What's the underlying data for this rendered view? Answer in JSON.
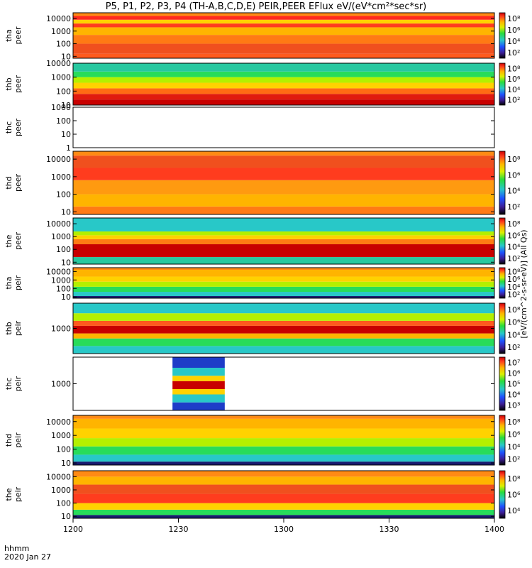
{
  "title": "P5, P1, P2, P3, P4 (TH-A,B,C,D,E) PEIR,PEER EFlux eV/(eV*cm²*sec*sr)",
  "footer": {
    "line1": "hhmm",
    "line2": "2020 Jan 27"
  },
  "x_ticks": [
    "1200",
    "1230",
    "1300",
    "1330",
    "1400"
  ],
  "colorbar_unit_peer": "[eV/(cm^2-s-sr-eV)] (All Qs)",
  "colorbar_unit_peir": "[eV/(cm^2-s-sr-eV)] (All Qs)",
  "chart_data": {
    "type": "heatmap",
    "x_range": [
      "12:00",
      "14:00"
    ],
    "x_ticks": [
      "1200",
      "1230",
      "1300",
      "1330",
      "1400"
    ],
    "scale": "log",
    "panels": [
      {
        "id": "tha-peer",
        "label1": "tha",
        "label2": "peer",
        "y_ticks": [
          "10000",
          "1000",
          "100",
          "10"
        ],
        "cbar_ticks": [
          "10⁸",
          "10⁶",
          "10⁴",
          "10²"
        ],
        "log_ylim": [
          0.85,
          4.45
        ],
        "bands": [
          [
            0.85,
            1.2,
            "#ff5a1e"
          ],
          [
            1.2,
            2.0,
            "#f0501e"
          ],
          [
            2.0,
            2.7,
            "#ff7a14"
          ],
          [
            2.7,
            3.3,
            "#ffb400"
          ],
          [
            3.3,
            3.6,
            "#ff3c1e"
          ],
          [
            3.6,
            3.9,
            "#ffd200"
          ],
          [
            3.9,
            4.2,
            "#ff2a1e"
          ],
          [
            4.2,
            4.45,
            "#ff8a14"
          ]
        ]
      },
      {
        "id": "thb-peer",
        "label1": "thb",
        "label2": "peer",
        "y_ticks": [
          "10000",
          "1000",
          "100",
          "10"
        ],
        "cbar_ticks": [
          "10⁸",
          "10⁶",
          "10⁴",
          "10²"
        ],
        "log_ylim": [
          1.0,
          4.0
        ],
        "bands": [
          [
            1.0,
            1.4,
            "#c80000"
          ],
          [
            1.4,
            1.8,
            "#e01a0e"
          ],
          [
            1.8,
            2.2,
            "#ff6a14"
          ],
          [
            2.2,
            2.6,
            "#ffd200"
          ],
          [
            2.6,
            3.0,
            "#b4f000"
          ],
          [
            3.0,
            3.4,
            "#28dc5a"
          ],
          [
            3.4,
            4.0,
            "#28c8a0"
          ]
        ]
      },
      {
        "id": "thc-peer",
        "label1": "thc",
        "label2": "peer",
        "y_ticks": [
          "1000",
          "100",
          "10",
          "1"
        ],
        "cbar_ticks": [],
        "log_ylim": [
          0.0,
          3.0
        ],
        "bands": []
      },
      {
        "id": "thd-peer",
        "label1": "thd",
        "label2": "peer",
        "y_ticks": [
          "10000",
          "1000",
          "100",
          "10"
        ],
        "cbar_ticks": [
          "10⁸",
          "10⁶",
          "10⁴",
          "10²"
        ],
        "log_ylim": [
          0.85,
          4.45
        ],
        "bands": [
          [
            0.85,
            1.3,
            "#ff7a14"
          ],
          [
            1.3,
            2.0,
            "#ffb400"
          ],
          [
            2.0,
            2.8,
            "#ff9a10"
          ],
          [
            2.8,
            3.5,
            "#ff3c1e"
          ],
          [
            3.5,
            4.2,
            "#f0501e"
          ],
          [
            4.2,
            4.45,
            "#ff8a14"
          ]
        ]
      },
      {
        "id": "the-peer",
        "label1": "the",
        "label2": "peer",
        "y_ticks": [
          "10000",
          "1000",
          "100",
          "10"
        ],
        "cbar_ticks": [
          "10⁸",
          "10⁶",
          "10⁴",
          "10²"
        ],
        "log_ylim": [
          0.85,
          4.45
        ],
        "bands": [
          [
            0.85,
            1.4,
            "#28c8a0"
          ],
          [
            1.4,
            2.4,
            "#c80000"
          ],
          [
            2.4,
            2.8,
            "#ff7a14"
          ],
          [
            2.8,
            3.1,
            "#ffd200"
          ],
          [
            3.1,
            3.4,
            "#b4f000"
          ],
          [
            3.4,
            4.45,
            "#28c8c8"
          ]
        ]
      },
      {
        "id": "tha-peir",
        "label1": "tha",
        "label2": "peir",
        "y_ticks": [
          "10000",
          "1000",
          "100",
          "10"
        ],
        "cbar_ticks": [
          "10⁸",
          "10⁶",
          "10⁴",
          "10²"
        ],
        "log_ylim": [
          0.85,
          4.45
        ],
        "bands": [
          [
            0.85,
            1.1,
            "#1a1a6e"
          ],
          [
            1.1,
            1.6,
            "#28c8c8"
          ],
          [
            1.6,
            2.2,
            "#28dc5a"
          ],
          [
            2.2,
            2.8,
            "#b4f000"
          ],
          [
            2.8,
            3.4,
            "#ffd200"
          ],
          [
            3.4,
            4.2,
            "#ffb400"
          ],
          [
            4.2,
            4.45,
            "#ff8a14"
          ]
        ]
      },
      {
        "id": "thb-peir",
        "label1": "thb",
        "label2": "peir",
        "y_ticks": [
          "1000"
        ],
        "cbar_ticks": [
          "10⁸",
          "10⁶",
          "10⁴",
          "10²"
        ],
        "log_ylim": [
          2.0,
          4.0
        ],
        "bands": [
          [
            2.0,
            2.3,
            "#28c8c8"
          ],
          [
            2.3,
            2.6,
            "#28dc5a"
          ],
          [
            2.6,
            2.8,
            "#ffb400"
          ],
          [
            2.8,
            3.1,
            "#c80000"
          ],
          [
            3.1,
            3.3,
            "#ff5a1e"
          ],
          [
            3.3,
            3.6,
            "#b4f000"
          ],
          [
            3.6,
            4.0,
            "#28c8c8"
          ]
        ]
      },
      {
        "id": "thc-peir",
        "label1": "thc",
        "label2": "peir",
        "y_ticks": [
          "1000"
        ],
        "cbar_ticks": [
          "10⁷",
          "10⁶",
          "10⁵",
          "10⁴",
          "10³"
        ],
        "log_ylim": [
          2.0,
          4.0
        ],
        "block": {
          "t_start": 0.236,
          "t_end": 0.36
        },
        "bands": [
          [
            2.0,
            2.3,
            "#1e3cc8"
          ],
          [
            2.3,
            2.6,
            "#28c8c8"
          ],
          [
            2.6,
            2.8,
            "#ffd200"
          ],
          [
            2.8,
            3.1,
            "#c80000"
          ],
          [
            3.1,
            3.3,
            "#ffd200"
          ],
          [
            3.3,
            3.6,
            "#28c8c8"
          ],
          [
            3.6,
            4.0,
            "#1e3cc8"
          ]
        ]
      },
      {
        "id": "thd-peir",
        "label1": "thd",
        "label2": "peir",
        "y_ticks": [
          "10000",
          "1000",
          "100",
          "10"
        ],
        "cbar_ticks": [
          "10⁸",
          "10⁶",
          "10⁴",
          "10²"
        ],
        "log_ylim": [
          0.85,
          4.45
        ],
        "bands": [
          [
            0.85,
            1.1,
            "#1a1a6e"
          ],
          [
            1.1,
            1.6,
            "#28c8c8"
          ],
          [
            1.6,
            2.2,
            "#28dc5a"
          ],
          [
            2.2,
            2.8,
            "#b4f000"
          ],
          [
            2.8,
            3.5,
            "#ffd200"
          ],
          [
            3.5,
            4.2,
            "#ffb400"
          ],
          [
            4.2,
            4.45,
            "#ff8a14"
          ]
        ]
      },
      {
        "id": "the-peir",
        "label1": "the",
        "label2": "peir",
        "y_ticks": [
          "10000",
          "1000",
          "100",
          "10"
        ],
        "cbar_ticks": [
          "10⁸",
          "10⁶",
          "10⁴"
        ],
        "log_ylim": [
          0.85,
          4.45
        ],
        "bands": [
          [
            0.85,
            1.1,
            "#1a1a6e"
          ],
          [
            1.1,
            1.5,
            "#28dc5a"
          ],
          [
            1.5,
            2.0,
            "#ffd200"
          ],
          [
            2.0,
            2.7,
            "#ff3c1e"
          ],
          [
            2.7,
            3.4,
            "#f0501e"
          ],
          [
            3.4,
            4.0,
            "#ffb400"
          ],
          [
            4.0,
            4.45,
            "#ff8a14"
          ]
        ]
      }
    ]
  }
}
